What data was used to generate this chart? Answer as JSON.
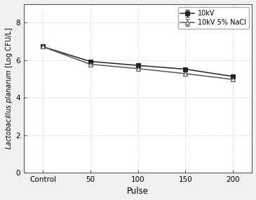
{
  "x_labels": [
    "Control",
    "50",
    "100",
    "150",
    "200"
  ],
  "x_positions": [
    0,
    1,
    2,
    3,
    4
  ],
  "series1_label": "10kV",
  "series1_y": [
    6.72,
    5.93,
    5.72,
    5.52,
    5.13
  ],
  "series1_yerr": [
    0.07,
    0.07,
    0.06,
    0.06,
    0.07
  ],
  "series1_color": "#222222",
  "series1_marker": "s",
  "series1_markersize": 4.5,
  "series2_label": "10kV 5% NaCl",
  "series2_y": [
    6.72,
    5.78,
    5.55,
    5.28,
    4.97
  ],
  "series2_yerr": [
    0.07,
    0.06,
    0.05,
    0.05,
    0.06
  ],
  "series2_color": "#555555",
  "series2_marker": "^",
  "series2_markersize": 5,
  "xlabel": "Pulse",
  "ylabel_italic": "Lactobacillus planarum",
  "ylabel_normal": " [Log CFU/L]",
  "ylim": [
    0,
    9
  ],
  "yticks": [
    0,
    2,
    4,
    6,
    8
  ],
  "grid_linestyle": ":",
  "grid_color": "#bbbbbb",
  "legend_loc": "upper right",
  "fig_facecolor": "#f0f0f0",
  "axes_facecolor": "#ffffff",
  "linewidth": 1.1,
  "capsize": 2.5
}
